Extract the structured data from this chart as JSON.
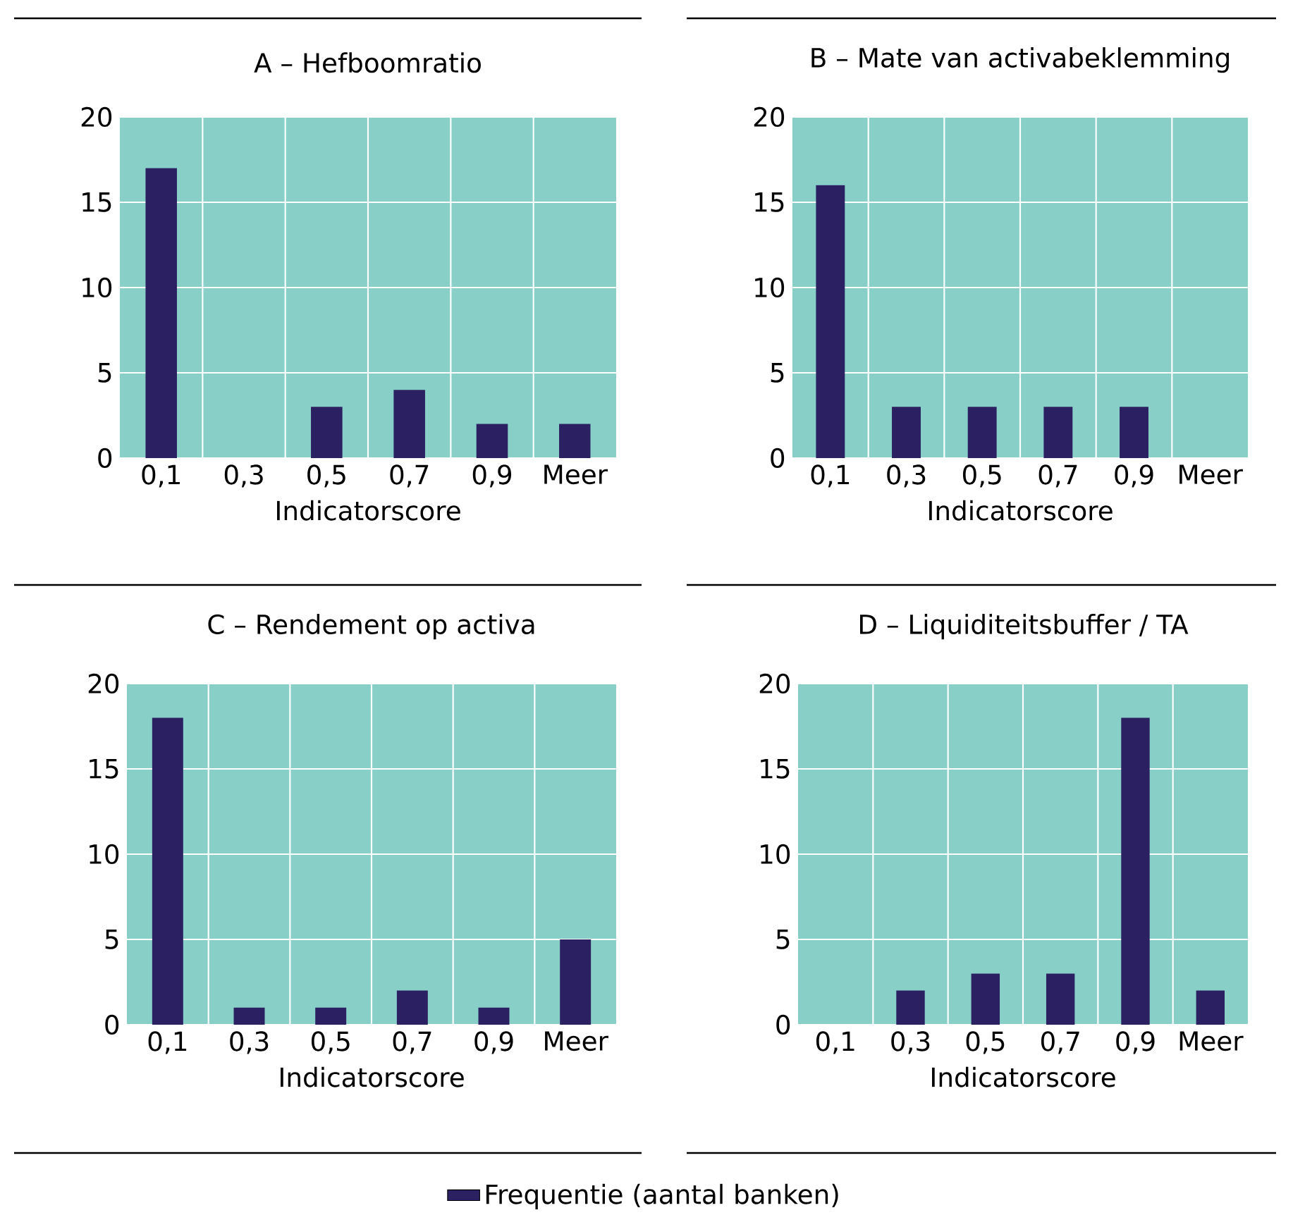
{
  "chart_data": [
    {
      "type": "bar",
      "title": "A – Hefboomratio",
      "xlabel": "Indicatorscore",
      "categories": [
        "0,1",
        "0,3",
        "0,5",
        "0,7",
        "0,9",
        "Meer"
      ],
      "series": [
        {
          "color": "#2b2162",
          "values": [
            17,
            0,
            3,
            4,
            2,
            2
          ]
        }
      ],
      "ylim": [
        0,
        20
      ],
      "yticks": [
        0,
        5,
        10,
        15,
        20
      ],
      "grid": true,
      "legend": false
    },
    {
      "type": "bar",
      "title": "B – Mate van activabeklemming",
      "xlabel": "Indicatorscore",
      "categories": [
        "0,1",
        "0,3",
        "0,5",
        "0,7",
        "0,9",
        "Meer"
      ],
      "series": [
        {
          "color": "#2b2162",
          "values": [
            16,
            3,
            3,
            3,
            3,
            0
          ]
        }
      ],
      "ylim": [
        0,
        20
      ],
      "yticks": [
        0,
        5,
        10,
        15,
        20
      ],
      "grid": true,
      "legend": false
    },
    {
      "type": "bar",
      "title": "C – Rendement op activa",
      "xlabel": "Indicatorscore",
      "categories": [
        "0,1",
        "0,3",
        "0,5",
        "0,7",
        "0,9",
        "Meer"
      ],
      "series": [
        {
          "color": "#2b2162",
          "values": [
            18,
            1,
            1,
            2,
            1,
            5
          ]
        }
      ],
      "ylim": [
        0,
        20
      ],
      "yticks": [
        0,
        5,
        10,
        15,
        20
      ],
      "grid": true,
      "legend": false
    },
    {
      "type": "bar",
      "title": "D – Liquiditeitsbuffer / TA",
      "xlabel": "Indicatorscore",
      "categories": [
        "0,1",
        "0,3",
        "0,5",
        "0,7",
        "0,9",
        "Meer"
      ],
      "series": [
        {
          "name": "Frequentie (aantal banken)",
          "color": "#2b2162",
          "values": [
            0,
            2,
            3,
            3,
            18,
            2
          ]
        }
      ],
      "ylim": [
        0,
        20
      ],
      "yticks": [
        0,
        5,
        10,
        15,
        20
      ],
      "grid": true,
      "legend": "bottom"
    }
  ]
}
